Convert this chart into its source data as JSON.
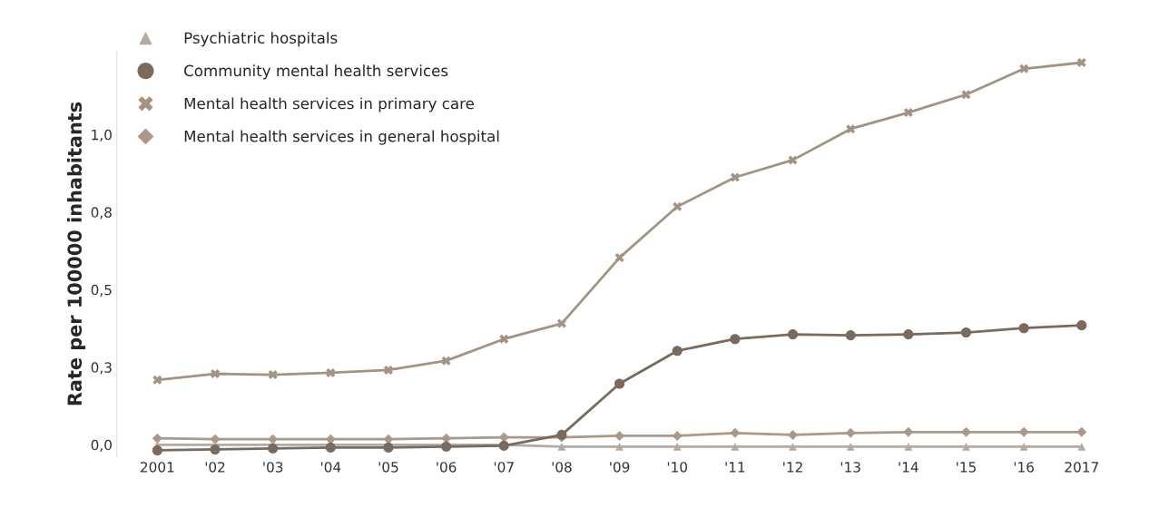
{
  "chart_data": {
    "type": "line",
    "ylabel": "Rate per 100000 inhabitants",
    "categories": [
      "2001",
      "'02",
      "'03",
      "'04",
      "'05",
      "'06",
      "'07",
      "'08",
      "'09",
      "'10",
      "'11",
      "'12",
      "'13",
      "'14",
      "'15",
      "'16",
      "2017"
    ],
    "ylim": [
      -0.04,
      1.27
    ],
    "yticks": [
      {
        "value": 0,
        "label": "0,0"
      },
      {
        "value": 0.25,
        "label": "0,3"
      },
      {
        "value": 0.5,
        "label": "0,5"
      },
      {
        "value": 0.75,
        "label": "0,8"
      },
      {
        "value": 1.0,
        "label": "1,0"
      }
    ],
    "grid": false,
    "legend": "top left",
    "series": [
      {
        "name": "Psychiatric hospitals",
        "color": "#b5aaa2",
        "marker": "triangle",
        "values": [
          0,
          0,
          0,
          0,
          0,
          0,
          0,
          -0.006,
          -0.006,
          -0.006,
          -0.006,
          -0.006,
          -0.006,
          -0.006,
          -0.006,
          -0.006,
          -0.006
        ]
      },
      {
        "name": "Community mental health services",
        "color": "#7a6a5e",
        "marker": "circle",
        "values": [
          -0.018,
          -0.015,
          -0.012,
          -0.009,
          -0.009,
          -0.006,
          -0.003,
          0.032,
          0.197,
          0.303,
          0.341,
          0.356,
          0.353,
          0.356,
          0.362,
          0.376,
          0.385
        ]
      },
      {
        "name": "Mental health services in primary care",
        "color": "#a39382",
        "marker": "cross",
        "values": [
          0.209,
          0.229,
          0.226,
          0.232,
          0.241,
          0.271,
          0.341,
          0.391,
          0.603,
          0.768,
          0.862,
          0.918,
          1.018,
          1.071,
          1.129,
          1.212,
          1.232
        ]
      },
      {
        "name": "Mental health services in general hospital",
        "color": "#ab9888",
        "marker": "diamond",
        "values": [
          0.021,
          0.018,
          0.018,
          0.018,
          0.018,
          0.021,
          0.024,
          0.024,
          0.029,
          0.029,
          0.038,
          0.032,
          0.038,
          0.041,
          0.041,
          0.041,
          0.041
        ]
      }
    ]
  }
}
